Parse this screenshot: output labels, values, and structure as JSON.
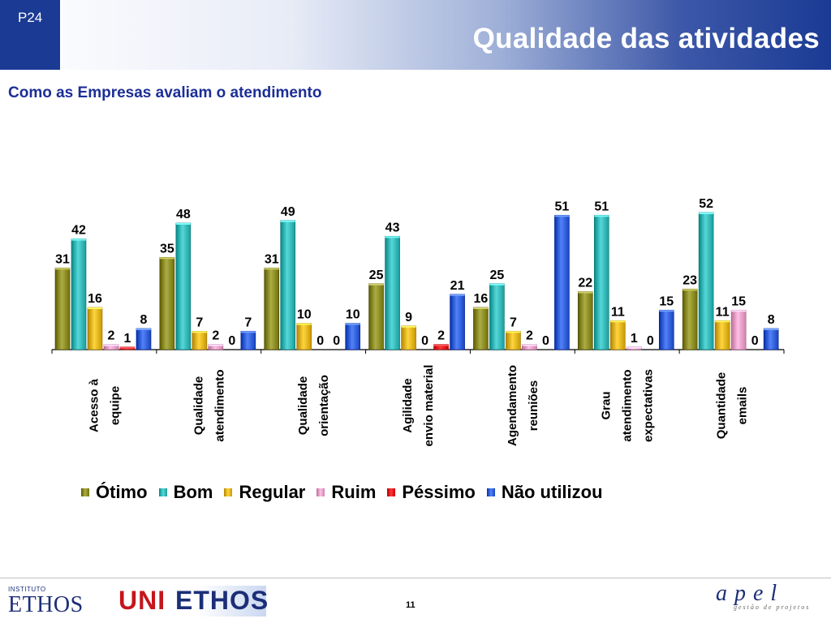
{
  "header": {
    "slide_code": "P24",
    "title": "Qualidade das atividades"
  },
  "subtitle": "Como as Empresas avaliam o atendimento",
  "chart_data": {
    "type": "bar",
    "title": "",
    "xlabel": "",
    "ylabel": "",
    "ylim": [
      0,
      60
    ],
    "grid": false,
    "legend_position": "bottom",
    "categories": [
      [
        "Acesso à",
        "equipe"
      ],
      [
        "Qualidade",
        "atendimento"
      ],
      [
        "Qualidade",
        "orientação"
      ],
      [
        "Agilidade",
        "envio material"
      ],
      [
        "Agendamento",
        "reuniões"
      ],
      [
        "Grau",
        "atendimento",
        "expectativas"
      ],
      [
        "Quantidade",
        "emails"
      ]
    ],
    "series": [
      {
        "name": "Ótimo",
        "color": "#8a8a22",
        "values": [
          31,
          35,
          31,
          25,
          16,
          22,
          23
        ]
      },
      {
        "name": "Bom",
        "color": "#33b5b5",
        "values": [
          42,
          48,
          49,
          43,
          25,
          51,
          52
        ]
      },
      {
        "name": "Regular",
        "color": "#e0b21a",
        "values": [
          16,
          7,
          10,
          9,
          7,
          11,
          11
        ]
      },
      {
        "name": "Ruim",
        "color": "#e89cc4",
        "values": [
          2,
          2,
          0,
          0,
          2,
          1,
          15
        ]
      },
      {
        "name": "Péssimo",
        "color": "#e0141a",
        "values": [
          1,
          0,
          0,
          2,
          0,
          0,
          0
        ]
      },
      {
        "name": "Não utilizou",
        "color": "#2f5ed6",
        "values": [
          8,
          7,
          10,
          21,
          51,
          15,
          8
        ]
      }
    ]
  },
  "footer": {
    "logo_ethos_small": "INSTITUTO",
    "logo_ethos_big": "ETHOS",
    "logo_uniethos_part1": "UNI",
    "logo_uniethos_part2": "ETHOS",
    "page_number": "11",
    "logo_apel_word": "apel",
    "logo_apel_sub": "gestão de projetos"
  }
}
